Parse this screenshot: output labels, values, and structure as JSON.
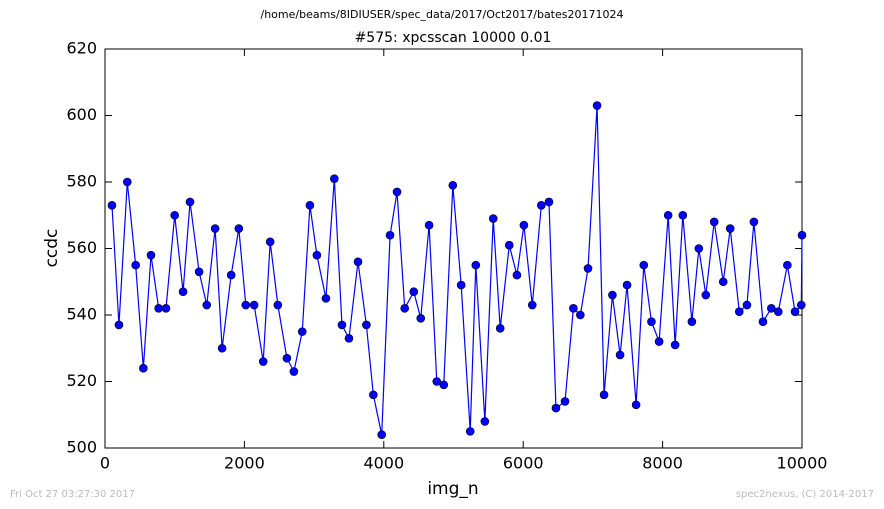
{
  "header": {
    "path": "/home/beams/8IDIUSER/spec_data/2017/Oct2017/bates20171024"
  },
  "chart_data": {
    "type": "line",
    "title": "#575: xpcsscan 10000 0.01",
    "xlabel": "img_n",
    "ylabel": "ccdc",
    "x": [
      100,
      200,
      320,
      440,
      550,
      660,
      770,
      875,
      1000,
      1120,
      1220,
      1350,
      1460,
      1580,
      1680,
      1810,
      1920,
      2020,
      2140,
      2270,
      2370,
      2480,
      2610,
      2710,
      2830,
      2940,
      3040,
      3170,
      3290,
      3400,
      3500,
      3630,
      3750,
      3850,
      3970,
      4090,
      4190,
      4300,
      4430,
      4530,
      4650,
      4760,
      4860,
      4990,
      5110,
      5240,
      5320,
      5450,
      5570,
      5670,
      5800,
      5910,
      6010,
      6130,
      6260,
      6370,
      6470,
      6600,
      6720,
      6820,
      6930,
      7060,
      7160,
      7280,
      7390,
      7490,
      7620,
      7730,
      7840,
      7950,
      8080,
      8180,
      8290,
      8420,
      8520,
      8620,
      8740,
      8870,
      8970,
      9100,
      9210,
      9310,
      9440,
      9560,
      9660,
      9790,
      9900,
      9990,
      10000
    ],
    "series": [
      {
        "name": "ccdc",
        "color": "#0000ff",
        "values": [
          573,
          537,
          580,
          555,
          524,
          558,
          542,
          542,
          570,
          547,
          574,
          553,
          543,
          566,
          530,
          552,
          566,
          543,
          543,
          526,
          562,
          543,
          527,
          523,
          535,
          573,
          558,
          545,
          581,
          537,
          533,
          556,
          537,
          516,
          504,
          564,
          577,
          542,
          547,
          539,
          567,
          520,
          519,
          579,
          549,
          505,
          555,
          508,
          569,
          536,
          561,
          552,
          567,
          543,
          573,
          574,
          512,
          514,
          542,
          540,
          554,
          603,
          516,
          546,
          528,
          549,
          513,
          555,
          538,
          532,
          570,
          531,
          570,
          538,
          560,
          546,
          568,
          550,
          566,
          541,
          543,
          568,
          538,
          542,
          541,
          555,
          541,
          543,
          564
        ]
      }
    ],
    "xlim": [
      0,
      10000
    ],
    "xticks": [
      0,
      2000,
      4000,
      6000,
      8000,
      10000
    ],
    "ylim": [
      500,
      620
    ],
    "yticks": [
      500,
      520,
      540,
      560,
      580,
      600,
      620
    ]
  },
  "footer": {
    "left": "Fri Oct 27 03:27:30 2017",
    "right": "spec2nexus, (C) 2014-2017"
  }
}
